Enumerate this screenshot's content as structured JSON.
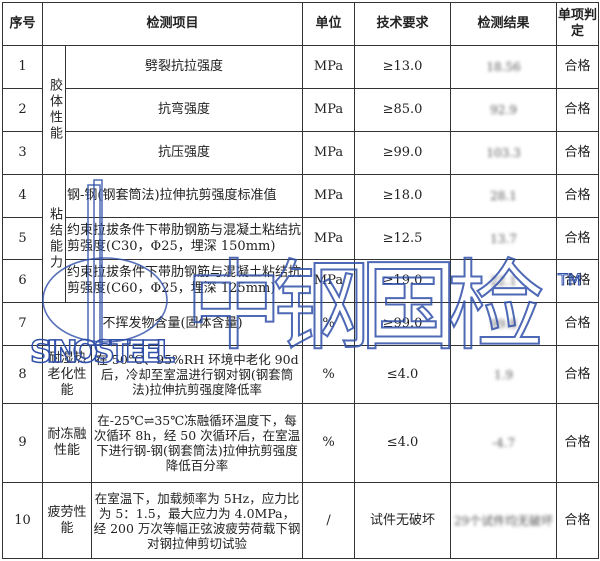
{
  "headers": [
    "序号",
    "检测项目",
    "单位",
    "技术要求",
    "检测结果",
    "单项判定"
  ],
  "rows": [
    {
      "no": "1",
      "category": "胶体性能",
      "item": "劈裂抗拉强度",
      "unit": "MPa",
      "req": "≥13.0",
      "result": "18.56",
      "judge": "合格"
    },
    {
      "no": "2",
      "item": "抗弯强度",
      "unit": "MPa",
      "req": "≥85.0",
      "result": "92.9",
      "judge": "合格"
    },
    {
      "no": "3",
      "item": "抗压强度",
      "unit": "MPa",
      "req": "≥99.0",
      "result": "103.3",
      "judge": "合格"
    },
    {
      "no": "4",
      "category": "粘结能力",
      "item": "钢-钢(钢套筒法)拉伸抗剪强度标准值",
      "unit": "MPa",
      "req": "≥18.0",
      "result": "28.1",
      "judge": "合格"
    },
    {
      "no": "5",
      "item": "约束拉拔条件下带肋钢筋与混凝土粘结抗剪强度(C30，Φ25，埋深 150mm)",
      "unit": "MPa",
      "req": "≥12.5",
      "result": "13.7",
      "judge": "合格"
    },
    {
      "no": "6",
      "item": "约束拉拔条件下带肋钢筋与混凝土粘结抗剪强度(C60，Φ25，埋深 125mm)",
      "unit": "MPa",
      "req": "≥19.0",
      "result": "22.1",
      "judge": "合格"
    },
    {
      "no": "7",
      "item": "不挥发物含量(固体含量)",
      "unit": "%",
      "req": "≥99.0",
      "result": "99.8",
      "judge": "合格"
    },
    {
      "no": "8",
      "category": "耐湿热老化性能",
      "item": "在 50°C、95%RH 环境中老化 90d 后，冷却至室温进行钢对钢(钢套筒法)拉伸抗剪强度降低率",
      "unit": "%",
      "req": "≤4.0",
      "result": "1.9",
      "judge": "合格"
    },
    {
      "no": "9",
      "category": "耐冻融性能",
      "item": "在-25℃⇌35℃冻融循环温度下，每次循环 8h，经 50 次循环后，在室温下进行钢-钢(钢套筒法)拉伸抗剪强度降低百分率",
      "unit": "%",
      "req": "≤4.0",
      "result": "-4.7",
      "judge": "合格"
    },
    {
      "no": "10",
      "category": "疲劳性能",
      "item": "在室温下，加载频率为 5Hz，应力比为 5：1.5，最大应力为 4.0MPa，经 200 万次等幅正弦波疲劳荷载下钢对钢拉伸剪切试验",
      "unit": "/",
      "req": "试件无破坏",
      "result": "29个试件均无破坏",
      "judge": "合格"
    }
  ],
  "watermark": {
    "logo_text": "SINOSTEEL",
    "brand": "中钢国检",
    "tm": "TM",
    "color": "#2f4fa8"
  }
}
